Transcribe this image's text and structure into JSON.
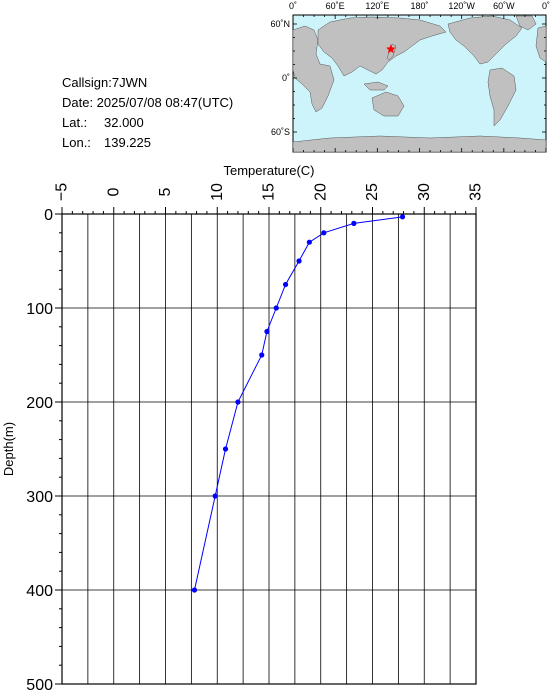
{
  "station": {
    "callsign": "Callsign:7JWN",
    "date": "Date:  2025/07/08 08:47(UTC)",
    "lat_label": "Lat.:",
    "lat_value": "32.000",
    "lon_label": "Lon.:",
    "lon_value": "139.225"
  },
  "map": {
    "top_ticks": [
      "0˚",
      "60˚E",
      "120˚E",
      "180˚",
      "120˚W",
      "60˚W",
      "0˚"
    ],
    "left_ticks": [
      "60˚N",
      "0˚",
      "60˚S"
    ],
    "ocean_color": "#cdf3fb",
    "land_color": "#c0c0c0",
    "marker_color": "#ff0000",
    "marker_lon": 139.225,
    "marker_lat": 32.0
  },
  "chart_data": {
    "type": "line",
    "xlabel": "Temperature(C)",
    "ylabel": "Depth(m)",
    "xlim": [
      -5,
      35
    ],
    "ylim": [
      0,
      500
    ],
    "x_ticks": [
      "−5",
      "0",
      "5",
      "10",
      "15",
      "20",
      "25",
      "30",
      "35"
    ],
    "y_ticks": [
      "0",
      "100",
      "200",
      "300",
      "400",
      "500"
    ],
    "x_axis_position": "top",
    "y_inverted": true,
    "grid": true,
    "line_color": "#0000ff",
    "series": [
      {
        "x": [
          27.9,
          23.2,
          20.3,
          18.9,
          17.9,
          16.6,
          15.7,
          14.8,
          14.3,
          12.0,
          10.8,
          9.8,
          7.8
        ],
        "y": [
          3,
          10,
          20,
          30,
          50,
          75,
          100,
          125,
          150,
          200,
          250,
          300,
          400
        ]
      }
    ]
  }
}
